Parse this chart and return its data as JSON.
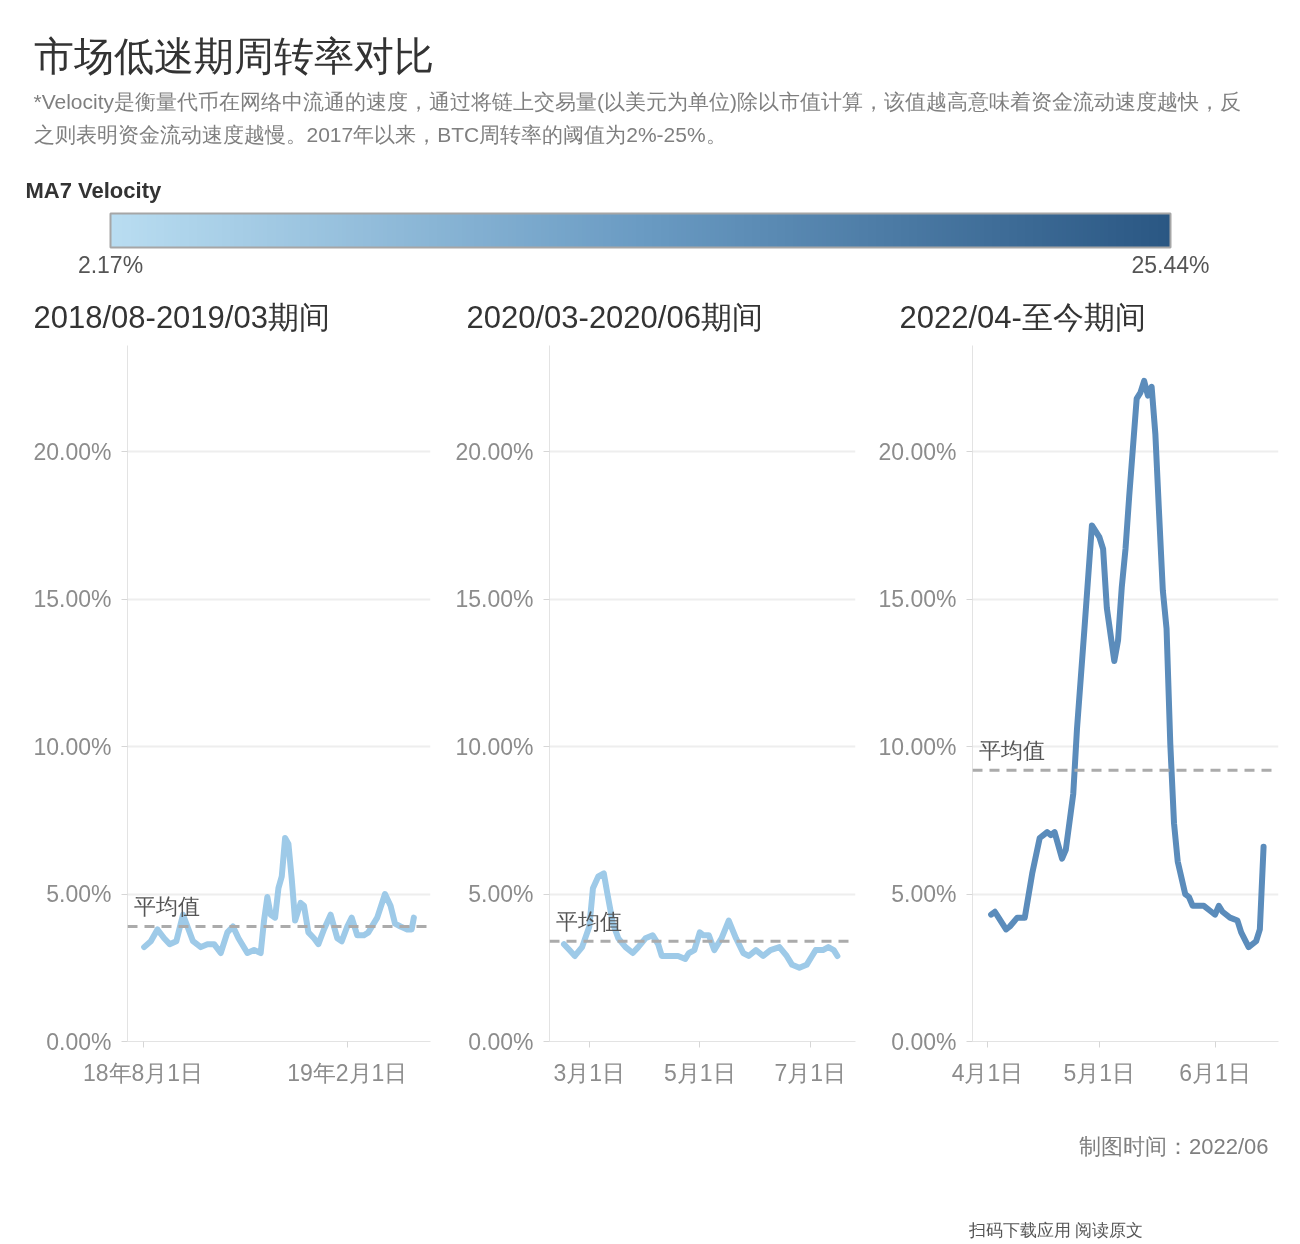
{
  "chart_data": [
    {
      "type": "other",
      "title": "市场低迷期周转率对比",
      "subtitle": "*Velocity是衡量代币在网络中流通的速度，通过将链上交易量(以美元为单位)除以市值计算，该值越高意味着资金流动速度越快，反之则表明资金流动速度越慢。2017年以来，BTC周转率的阈值为2%-25%。",
      "annotations": [
        "制图时间：2022/06",
        "扫码下载应用 阅读原文"
      ]
    },
    {
      "type": "line",
      "title": "2018/08-2019/03期间",
      "grid": "y",
      "clabel": "MA7 Velocity",
      "clim": [
        2.17,
        25.44
      ],
      "cticks": [
        {
          "value": 2.17,
          "label": "2.17%"
        },
        {
          "value": 25.44,
          "label": "25.44%"
        }
      ],
      "x": [
        "2018-08-02",
        "2018-08-08",
        "2018-08-14",
        "2018-08-20",
        "2018-08-25",
        "2018-08-31",
        "2018-09-06",
        "2018-09-09",
        "2018-09-15",
        "2018-09-22",
        "2018-09-28",
        "2018-10-04",
        "2018-10-10",
        "2018-10-16",
        "2018-10-21",
        "2018-10-26",
        "2018-11-03",
        "2018-11-09",
        "2018-11-15",
        "2018-11-18",
        "2018-11-21",
        "2018-11-24",
        "2018-11-28",
        "2018-12-01",
        "2018-12-04",
        "2018-12-07",
        "2018-12-10",
        "2018-12-13",
        "2018-12-16",
        "2018-12-21",
        "2018-12-24",
        "2018-12-28",
        "2019-01-02",
        "2019-01-06",
        "2019-01-11",
        "2019-01-17",
        "2019-01-23",
        "2019-01-27",
        "2019-02-01",
        "2019-02-05",
        "2019-02-10",
        "2019-02-16",
        "2019-02-20",
        "2019-02-28",
        "2019-03-07",
        "2019-03-12",
        "2019-03-16",
        "2019-03-21",
        "2019-03-27",
        "2019-03-31",
        "2019-04-02"
      ],
      "series": [
        {
          "color": "#9ecae8",
          "values": [
            3.2,
            3.4,
            3.8,
            3.5,
            3.3,
            3.4,
            4.3,
            4.0,
            3.4,
            3.2,
            3.3,
            3.3,
            3.0,
            3.7,
            3.9,
            3.5,
            3.0,
            3.1,
            3.0,
            4.1,
            4.9,
            4.3,
            4.2,
            5.2,
            5.6,
            6.9,
            6.7,
            5.5,
            4.1,
            4.7,
            4.6,
            3.7,
            3.5,
            3.3,
            3.8,
            4.3,
            3.5,
            3.4,
            3.9,
            4.2,
            3.6,
            3.6,
            3.7,
            4.2,
            5.0,
            4.6,
            4.0,
            3.9,
            3.8,
            3.8,
            4.2
          ]
        }
      ],
      "xlim": [
        "2018-07-18",
        "2019-04-17"
      ],
      "xticks": [
        {
          "value": "2018-08-01",
          "label": "18年8月1日"
        },
        {
          "value": "2019-02-01",
          "label": "19年2月1日"
        }
      ],
      "ylim": [
        0,
        23.6
      ],
      "yticks": [
        {
          "value": 0,
          "label": "0.00%"
        },
        {
          "value": 5,
          "label": "5.00%"
        },
        {
          "value": 10,
          "label": "10.00%"
        },
        {
          "value": 15,
          "label": "15.00%"
        },
        {
          "value": 20,
          "label": "20.00%"
        }
      ],
      "ref_lines": [
        {
          "axis": "y",
          "value": 3.9,
          "label": "平均值",
          "color": "#ababab",
          "line_style": "dashed"
        }
      ]
    },
    {
      "type": "line",
      "title": "2020/03-2020/06期间",
      "grid": "y",
      "x": [
        "2020-02-16",
        "2020-02-19",
        "2020-02-22",
        "2020-02-26",
        "2020-03-01",
        "2020-03-03",
        "2020-03-06",
        "2020-03-09",
        "2020-03-11",
        "2020-03-14",
        "2020-03-17",
        "2020-03-21",
        "2020-03-25",
        "2020-03-28",
        "2020-04-01",
        "2020-04-05",
        "2020-04-08",
        "2020-04-10",
        "2020-04-14",
        "2020-04-19",
        "2020-04-23",
        "2020-04-25",
        "2020-04-28",
        "2020-05-01",
        "2020-05-03",
        "2020-05-06",
        "2020-05-09",
        "2020-05-13",
        "2020-05-17",
        "2020-05-21",
        "2020-05-25",
        "2020-05-28",
        "2020-06-01",
        "2020-06-05",
        "2020-06-09",
        "2020-06-14",
        "2020-06-18",
        "2020-06-21",
        "2020-06-25",
        "2020-06-29",
        "2020-07-02",
        "2020-07-04",
        "2020-07-08",
        "2020-07-11",
        "2020-07-14",
        "2020-07-16"
      ],
      "series": [
        {
          "color": "#9ecae8",
          "values": [
            3.3,
            3.1,
            2.9,
            3.2,
            3.9,
            5.2,
            5.6,
            5.7,
            5.0,
            4.0,
            3.5,
            3.2,
            3.0,
            3.2,
            3.5,
            3.6,
            3.3,
            2.9,
            2.9,
            2.9,
            2.8,
            3.0,
            3.1,
            3.7,
            3.6,
            3.6,
            3.1,
            3.5,
            4.1,
            3.5,
            3.0,
            2.9,
            3.1,
            2.9,
            3.1,
            3.2,
            2.9,
            2.6,
            2.5,
            2.6,
            2.9,
            3.1,
            3.1,
            3.2,
            3.1,
            2.9
          ]
        }
      ],
      "xlim": [
        "2020-02-08",
        "2020-07-26"
      ],
      "xticks": [
        {
          "value": "2020-03-01",
          "label": "3月1日"
        },
        {
          "value": "2020-05-01",
          "label": "5月1日"
        },
        {
          "value": "2020-07-01",
          "label": "7月1日"
        }
      ],
      "ylim": [
        0,
        23.6
      ],
      "yticks": [
        {
          "value": 0,
          "label": "0.00%"
        },
        {
          "value": 5,
          "label": "5.00%"
        },
        {
          "value": 10,
          "label": "10.00%"
        },
        {
          "value": 15,
          "label": "15.00%"
        },
        {
          "value": 20,
          "label": "20.00%"
        }
      ],
      "ref_lines": [
        {
          "axis": "y",
          "value": 3.4,
          "label": "平均值",
          "color": "#ababab",
          "line_style": "dashed"
        }
      ]
    },
    {
      "type": "line",
      "title": "2022/04-至今期间",
      "grid": "y",
      "x": [
        "2022-04-02",
        "2022-04-03",
        "2022-04-04",
        "2022-04-06",
        "2022-04-07",
        "2022-04-09",
        "2022-04-11",
        "2022-04-13",
        "2022-04-15",
        "2022-04-16",
        "2022-04-17",
        "2022-04-18",
        "2022-04-19",
        "2022-04-21",
        "2022-04-22",
        "2022-04-24",
        "2022-04-25",
        "2022-04-27",
        "2022-04-29",
        "2022-05-01",
        "2022-05-02",
        "2022-05-03",
        "2022-05-05",
        "2022-05-06",
        "2022-05-07",
        "2022-05-08",
        "2022-05-09",
        "2022-05-11",
        "2022-05-12",
        "2022-05-13",
        "2022-05-14",
        "2022-05-15",
        "2022-05-16",
        "2022-05-17",
        "2022-05-18",
        "2022-05-19",
        "2022-05-20",
        "2022-05-21",
        "2022-05-22",
        "2022-05-24",
        "2022-05-25",
        "2022-05-26",
        "2022-05-28",
        "2022-05-29",
        "2022-05-31",
        "2022-06-01",
        "2022-06-02",
        "2022-06-03",
        "2022-06-05",
        "2022-06-07",
        "2022-06-08",
        "2022-06-10",
        "2022-06-12",
        "2022-06-13",
        "2022-06-14"
      ],
      "series": [
        {
          "color": "#5b8cbb",
          "values": [
            4.3,
            4.4,
            4.2,
            3.8,
            3.9,
            4.2,
            4.2,
            5.7,
            6.9,
            7.0,
            7.1,
            7.0,
            7.1,
            6.2,
            6.5,
            8.4,
            10.6,
            14.0,
            17.5,
            17.1,
            16.7,
            14.7,
            12.9,
            13.6,
            15.4,
            16.7,
            18.5,
            21.8,
            22.0,
            22.4,
            21.9,
            22.2,
            20.6,
            17.9,
            15.3,
            14.0,
            10.1,
            7.4,
            6.1,
            5.0,
            4.9,
            4.6,
            4.6,
            4.6,
            4.4,
            4.3,
            4.6,
            4.4,
            4.2,
            4.1,
            3.7,
            3.2,
            3.4,
            3.8,
            6.6
          ]
        }
      ],
      "xlim": [
        "2022-03-28",
        "2022-06-18"
      ],
      "xticks": [
        {
          "value": "2022-04-01",
          "label": "4月1日"
        },
        {
          "value": "2022-05-01",
          "label": "5月1日"
        },
        {
          "value": "2022-06-01",
          "label": "6月1日"
        }
      ],
      "ylim": [
        0,
        23.6
      ],
      "yticks": [
        {
          "value": 0,
          "label": "0.00%"
        },
        {
          "value": 5,
          "label": "5.00%"
        },
        {
          "value": 10,
          "label": "10.00%"
        },
        {
          "value": 15,
          "label": "15.00%"
        },
        {
          "value": 20,
          "label": "20.00%"
        }
      ],
      "ref_lines": [
        {
          "axis": "y",
          "value": 9.2,
          "label": "平均值",
          "color": "#ababab",
          "line_style": "dashed"
        }
      ]
    }
  ]
}
